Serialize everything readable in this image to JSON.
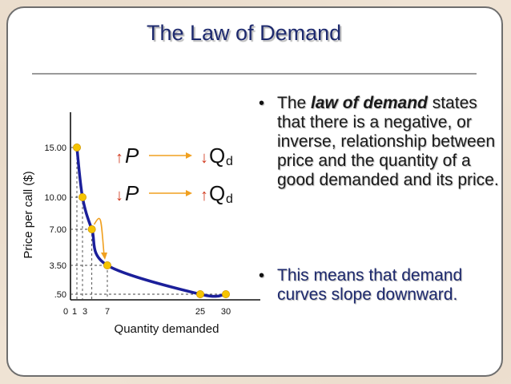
{
  "title": "The Law of Demand",
  "bullet1": {
    "before": "The ",
    "term": "law of demand",
    "after": " states that there is a negative, or inverse, relationship between price and the quantity of a good demanded and its price."
  },
  "bullet2": {
    "text": "This means that demand curves slope downward."
  },
  "colors": {
    "curve": "#1b1f9a",
    "points": "#f5c400",
    "arrows": "#f0a020",
    "title": "#1e2a6e"
  },
  "chart_data": {
    "type": "line",
    "title": "",
    "xlabel": "Quantity demanded",
    "ylabel": "Price per call ($)",
    "x_ticks": [
      "0",
      "1",
      "3",
      "7",
      "25",
      "30"
    ],
    "x_tick_values": [
      0,
      1,
      3,
      7,
      25,
      30
    ],
    "y_ticks": [
      "15.00",
      "10.00",
      "7.00",
      "3.50",
      ".50"
    ],
    "y_tick_values": [
      15,
      10,
      7,
      3.5,
      0.5
    ],
    "series": [
      {
        "points": [
          {
            "x": 1,
            "y": 15
          },
          {
            "x": 3,
            "y": 10
          },
          {
            "x": 4.5,
            "y": 7
          },
          {
            "x": 7,
            "y": 3.5
          },
          {
            "x": 25,
            "y": 0.5
          },
          {
            "x": 30,
            "y": 0.5
          }
        ]
      }
    ],
    "annotations": {
      "row1": {
        "left": "↑P",
        "right": "↓Q",
        "sub": "d"
      },
      "row2": {
        "left": "↓P",
        "right": "↑Q",
        "sub": "d"
      }
    },
    "grid": false
  }
}
